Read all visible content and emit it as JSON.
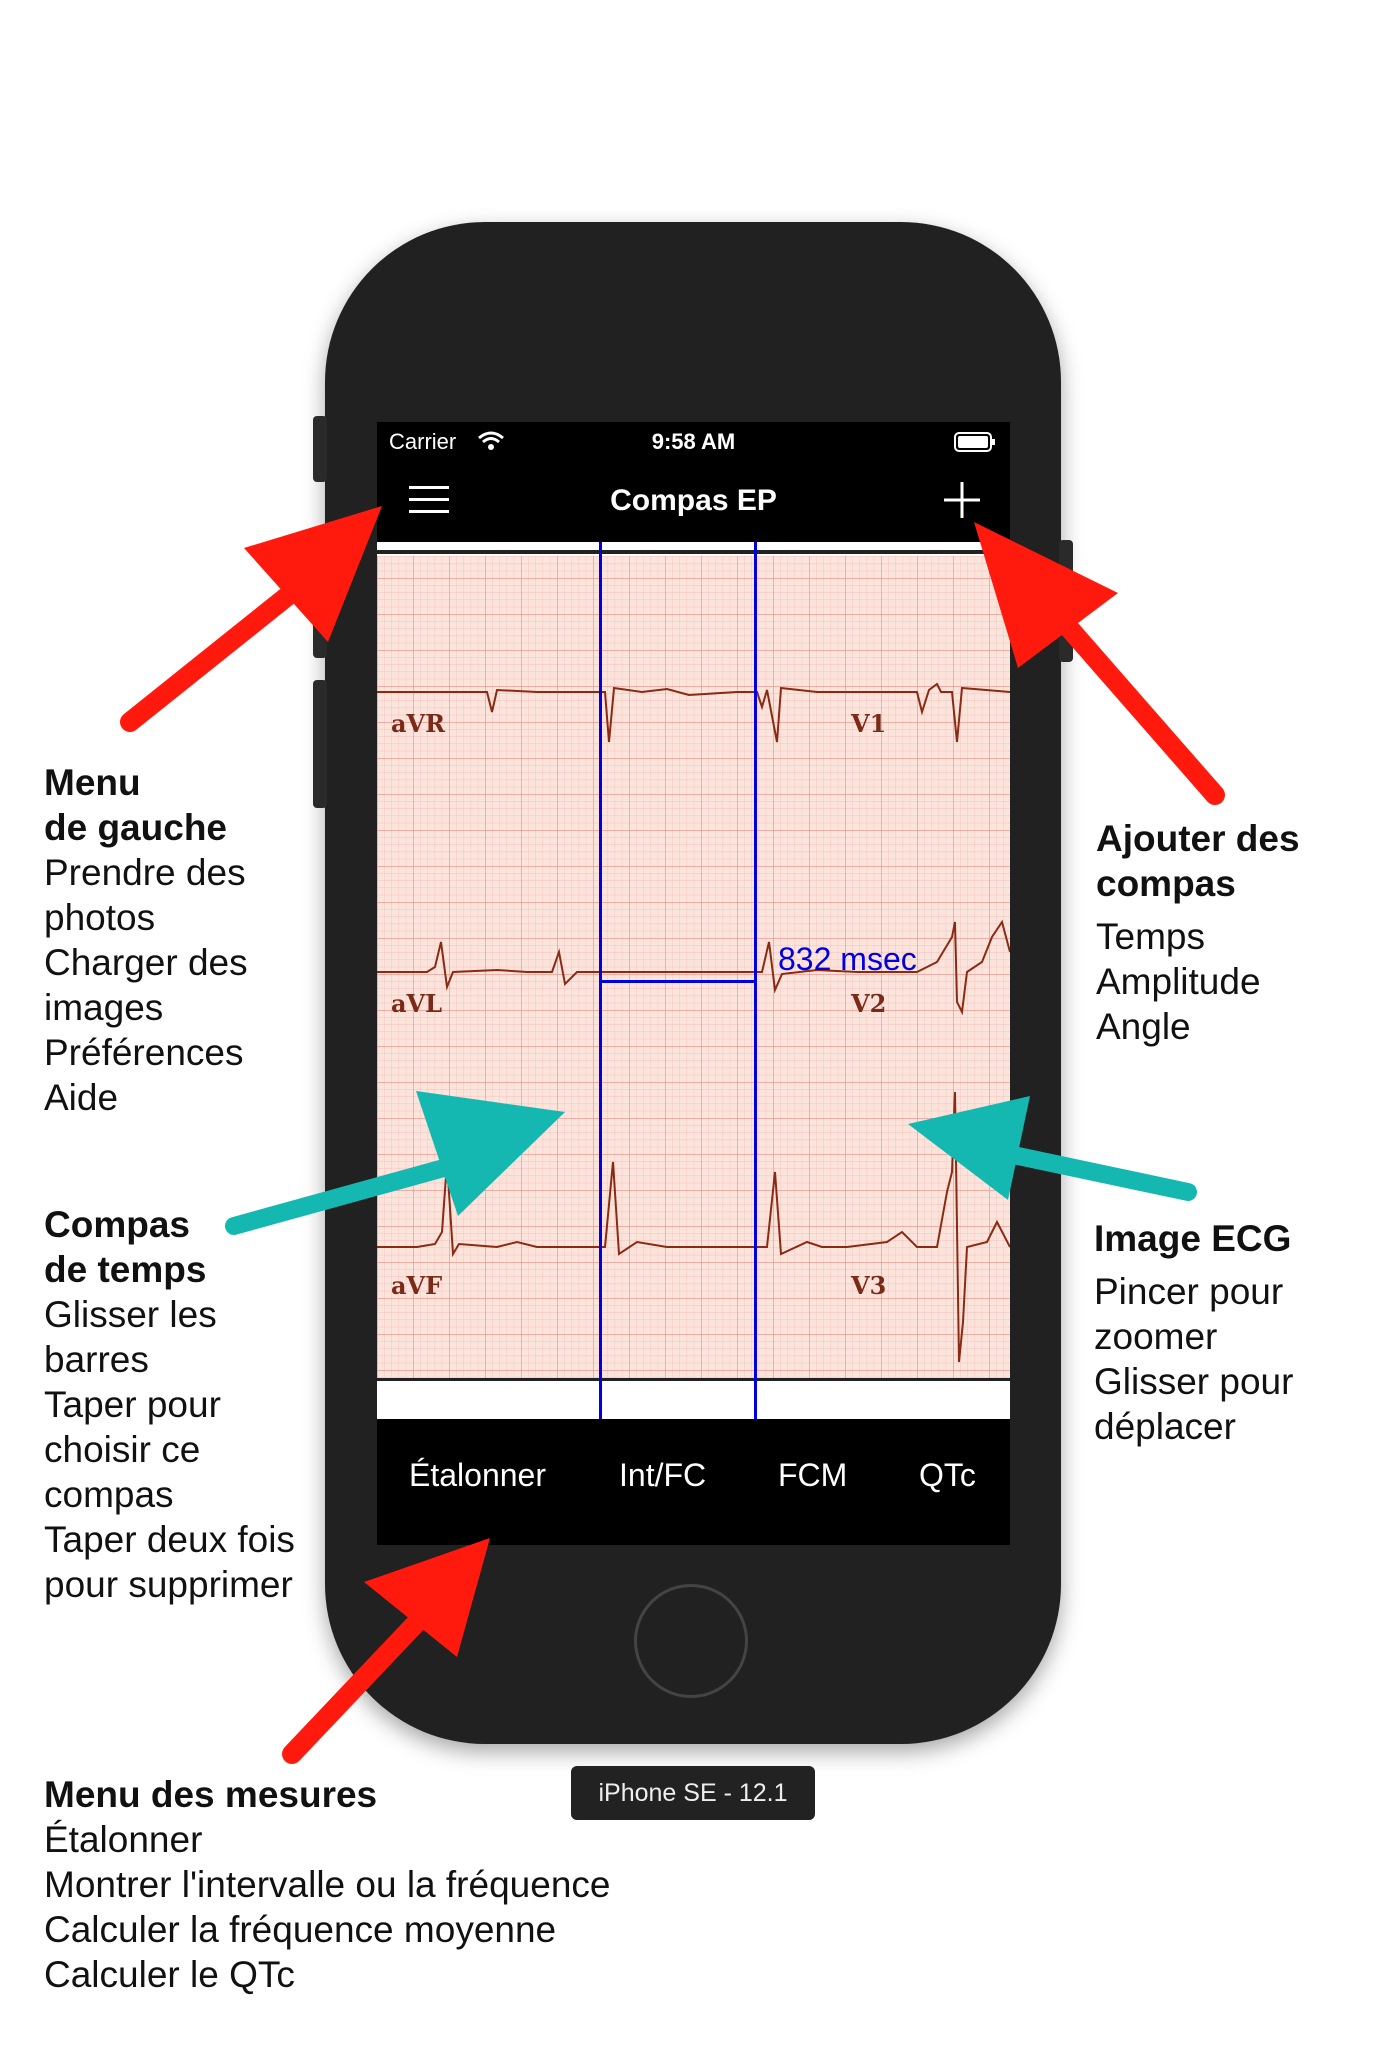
{
  "status_bar": {
    "carrier": "Carrier",
    "time": "9:58 AM"
  },
  "nav": {
    "title": "Compas EP"
  },
  "ecg": {
    "lead_labels": [
      "aVR",
      "V1",
      "aVL",
      "V2",
      "aVF",
      "V3"
    ],
    "interval_label": "832 msec"
  },
  "toolbar": {
    "items": [
      "Étalonner",
      "Int/FC",
      "FCM",
      "QTc"
    ]
  },
  "device_label": "iPhone SE - 12.1",
  "annotations": {
    "left_menu": {
      "heading": [
        "Menu",
        "de gauche"
      ],
      "lines": [
        "Prendre des",
        "photos",
        "Charger des",
        "images",
        "Préférences",
        "Aide"
      ]
    },
    "add_calipers": {
      "heading": [
        "Ajouter des",
        "compas"
      ],
      "lines": [
        "Temps",
        "Amplitude",
        "Angle"
      ]
    },
    "time_calipers": {
      "heading": [
        "Compas",
        "de temps"
      ],
      "lines": [
        "Glisser les",
        "barres",
        "Taper pour",
        "choisir ce",
        "compas",
        "Taper deux fois",
        "pour supprimer"
      ]
    },
    "ecg_image": {
      "heading": [
        "Image ECG"
      ],
      "lines": [
        "Pincer pour",
        "zoomer",
        "Glisser pour",
        "déplacer"
      ]
    },
    "measure_menu": {
      "heading": [
        "Menu des mesures"
      ],
      "lines": [
        "Étalonner",
        "Montrer l'intervalle ou la fréquence",
        "Calculer la fréquence moyenne",
        "Calculer le QTc"
      ]
    }
  },
  "colors": {
    "arrow_red": "#ff1a0d",
    "arrow_teal": "#14b8b0",
    "caliper_blue": "#0000e0",
    "ecg_trace": "#8b2a12",
    "ecg_grid": "#f0a0a0",
    "ecg_paper": "#fbe4dc"
  }
}
